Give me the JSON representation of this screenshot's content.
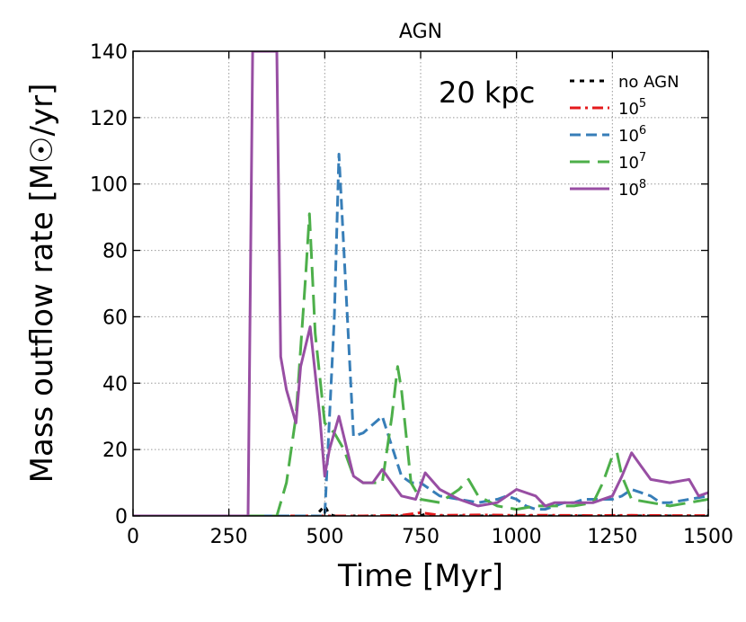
{
  "chart_data": {
    "type": "line",
    "title": "AGN",
    "xlabel": "Time [Myr]",
    "ylabel": "Mass outflow rate [M☉/yr]",
    "xlim": [
      0,
      1500
    ],
    "ylim": [
      0,
      140
    ],
    "xticks": [
      0,
      250,
      500,
      750,
      1000,
      1250,
      1500
    ],
    "yticks": [
      0,
      20,
      40,
      60,
      80,
      100,
      120,
      140
    ],
    "grid": true,
    "legend_position": "top-right",
    "annotation": "20 kpc",
    "series": [
      {
        "name": "no AGN",
        "label_base": "no AGN",
        "label_exp": "",
        "color": "#000000",
        "dash": "short",
        "x": [
          0,
          250,
          450,
          475,
          500,
          512,
          525,
          550,
          600,
          700,
          750,
          760,
          800,
          900,
          1000,
          1100,
          1200,
          1300,
          1400,
          1500
        ],
        "y": [
          0,
          0,
          0,
          0,
          3,
          0.5,
          0,
          0,
          0,
          0,
          0,
          0.5,
          0,
          0,
          0,
          0,
          0,
          0,
          0,
          0
        ]
      },
      {
        "name": "10^5",
        "label_base": "10",
        "label_exp": "5",
        "color": "#e41a1c",
        "dash": "dashdot",
        "x": [
          0,
          250,
          500,
          550,
          600,
          700,
          750,
          800,
          900,
          1000,
          1100,
          1200,
          1300,
          1400,
          1500
        ],
        "y": [
          0,
          0,
          0,
          0,
          0,
          0.2,
          1,
          0.2,
          0.3,
          0.2,
          0.2,
          0.1,
          0.2,
          0.1,
          0.1
        ]
      },
      {
        "name": "10^6",
        "label_base": "10",
        "label_exp": "6",
        "color": "#377eb8",
        "dash": "dashed",
        "x": [
          0,
          250,
          450,
          475,
          500,
          525,
          537,
          575,
          600,
          650,
          700,
          725,
          750,
          775,
          800,
          850,
          900,
          950,
          975,
          1000,
          1025,
          1050,
          1075,
          1100,
          1125,
          1150,
          1175,
          1200,
          1225,
          1250,
          1275,
          1300,
          1325,
          1350,
          1375,
          1400,
          1450,
          1500
        ],
        "y": [
          0,
          0,
          0,
          0,
          0,
          60,
          109,
          24,
          25,
          30,
          12,
          10,
          10,
          8,
          6,
          5,
          4,
          5,
          6,
          5,
          3,
          2,
          2,
          3,
          4,
          4,
          5,
          5,
          5,
          5,
          6,
          8,
          7,
          6,
          4,
          4,
          5,
          6
        ]
      },
      {
        "name": "10^7",
        "label_base": "10",
        "label_exp": "7",
        "color": "#4daf4a",
        "dash": "longdash",
        "x": [
          0,
          250,
          375,
          400,
          425,
          450,
          460,
          475,
          500,
          525,
          550,
          575,
          600,
          625,
          650,
          675,
          690,
          700,
          725,
          750,
          800,
          850,
          875,
          900,
          950,
          1000,
          1050,
          1100,
          1150,
          1200,
          1225,
          1250,
          1262,
          1275,
          1300,
          1350,
          1400,
          1450,
          1500
        ],
        "y": [
          0,
          0,
          0,
          10,
          30,
          72,
          91,
          55,
          28,
          25,
          20,
          12,
          10,
          10,
          10,
          30,
          45,
          38,
          10,
          5,
          4,
          8,
          11,
          6,
          3,
          2,
          3,
          3,
          3,
          4,
          10,
          18,
          19,
          12,
          5,
          4,
          3,
          4,
          5
        ]
      },
      {
        "name": "10^8",
        "label_base": "10",
        "label_exp": "8",
        "color": "#984ea3",
        "dash": "solid",
        "x": [
          0,
          250,
          300,
          312,
          335,
          350,
          362,
          375,
          385,
          400,
          425,
          437,
          462,
          487,
          500,
          512,
          537,
          575,
          600,
          625,
          650,
          675,
          700,
          737,
          762,
          800,
          850,
          900,
          950,
          1000,
          1050,
          1075,
          1100,
          1150,
          1200,
          1250,
          1275,
          1300,
          1325,
          1350,
          1400,
          1450,
          1475,
          1500
        ],
        "y": [
          0,
          0,
          0,
          140,
          140,
          140,
          140,
          140,
          48,
          38,
          28,
          45,
          57,
          30,
          12,
          20,
          30,
          12,
          10,
          10,
          14,
          10,
          6,
          5,
          13,
          8,
          5,
          3,
          4,
          8,
          6,
          3,
          4,
          4,
          4,
          6,
          12,
          19,
          15,
          11,
          10,
          11,
          6,
          7
        ]
      }
    ]
  }
}
